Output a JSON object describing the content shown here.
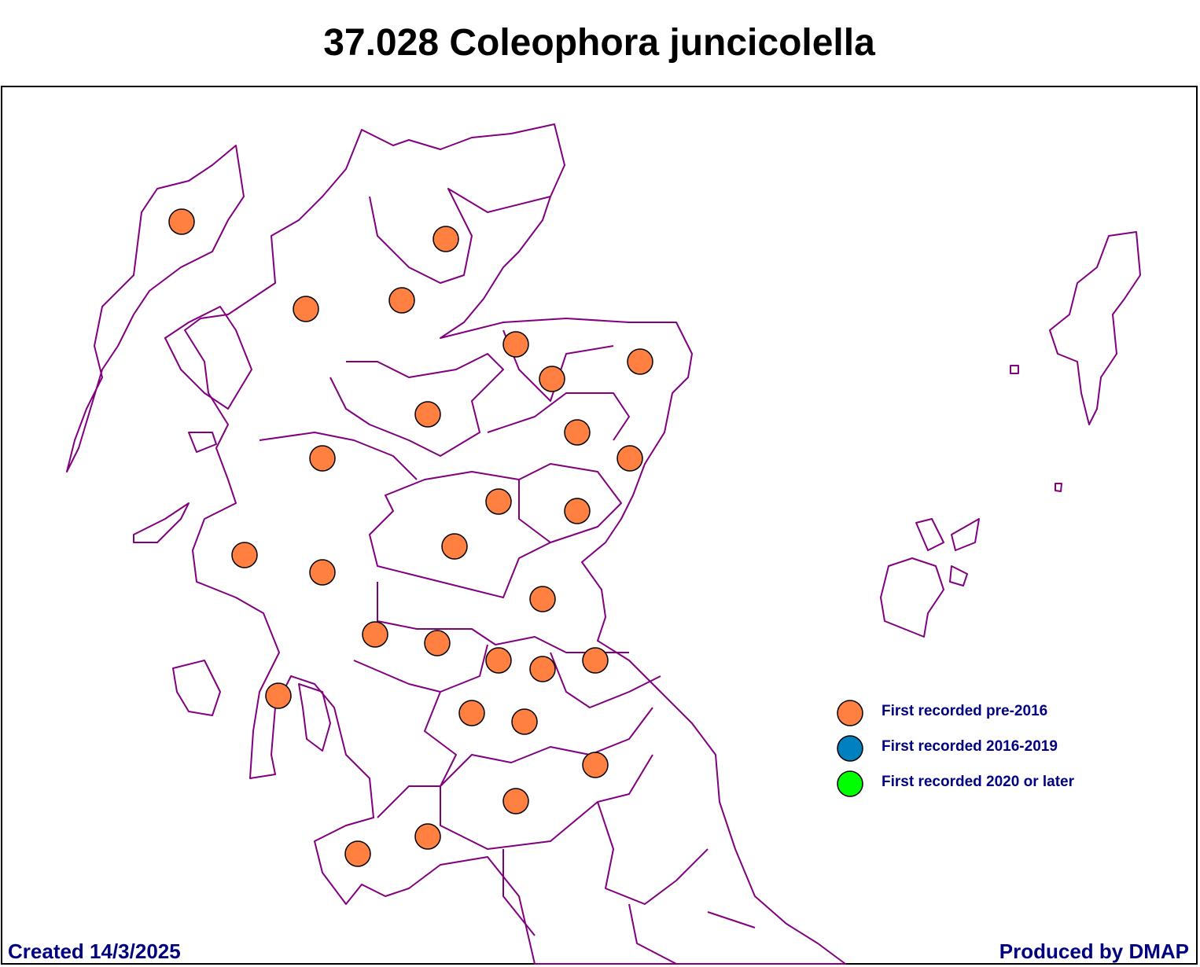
{
  "title": "37.028 Coleophora juncicolella",
  "legend": {
    "items": [
      {
        "label": "First recorded pre-2016",
        "color": "#ff8040"
      },
      {
        "label": "First recorded 2016-2019",
        "color": "#0080c0"
      },
      {
        "label": "First recorded 2020 or later",
        "color": "#00ff00"
      }
    ]
  },
  "footer": {
    "created": "Created 14/3/2025",
    "producer": "Produced by DMAP"
  }
}
